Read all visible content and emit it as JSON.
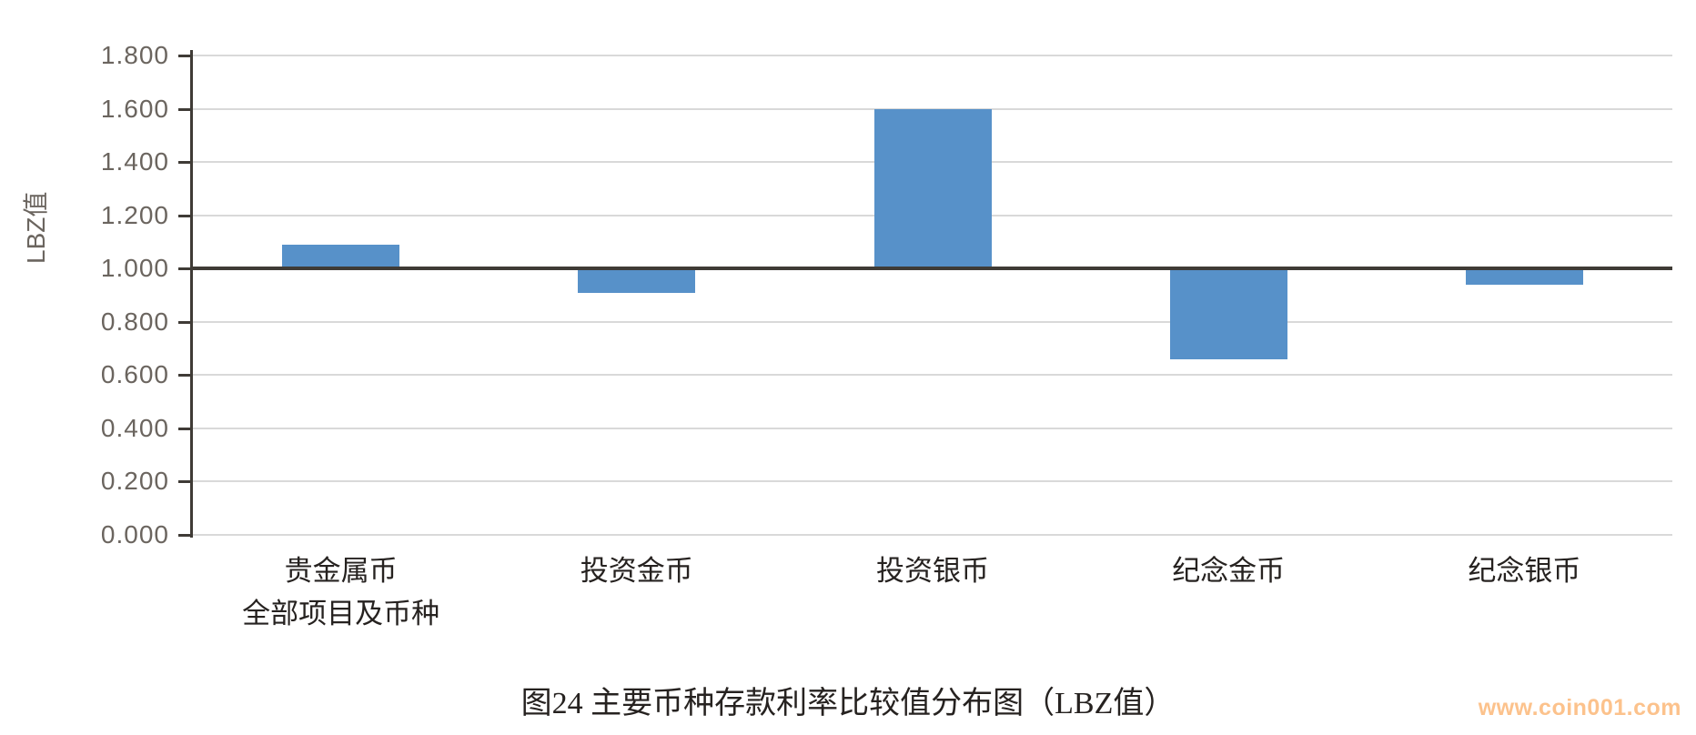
{
  "chart_data": {
    "type": "bar",
    "title": "图24 主要币种存款利率比较值分布图（LBZ值）",
    "ylabel": "LBZ值",
    "xlabel": "",
    "categories": [
      "贵金属币\n全部项目及币种",
      "投资金币",
      "投资银币",
      "纪念金币",
      "纪念银币"
    ],
    "values": [
      1.09,
      0.91,
      1.6,
      0.66,
      0.94
    ],
    "ylim": [
      0.0,
      1.8
    ],
    "ytick_step": 0.2,
    "ytick_labels": [
      "0.000",
      "0.200",
      "0.400",
      "0.600",
      "0.800",
      "1.000",
      "1.200",
      "1.400",
      "1.600",
      "1.800"
    ],
    "baseline": 1.0,
    "grid": true,
    "legend": "none",
    "bar_color": "#5791c9",
    "axis_color": "#3f3b36",
    "gridline_color": "#d9d9d9",
    "tick_label_color": "#6b655f",
    "text_color": "#262220"
  },
  "watermark": {
    "text": "www.coin001.com",
    "color": "#fcc28c"
  }
}
